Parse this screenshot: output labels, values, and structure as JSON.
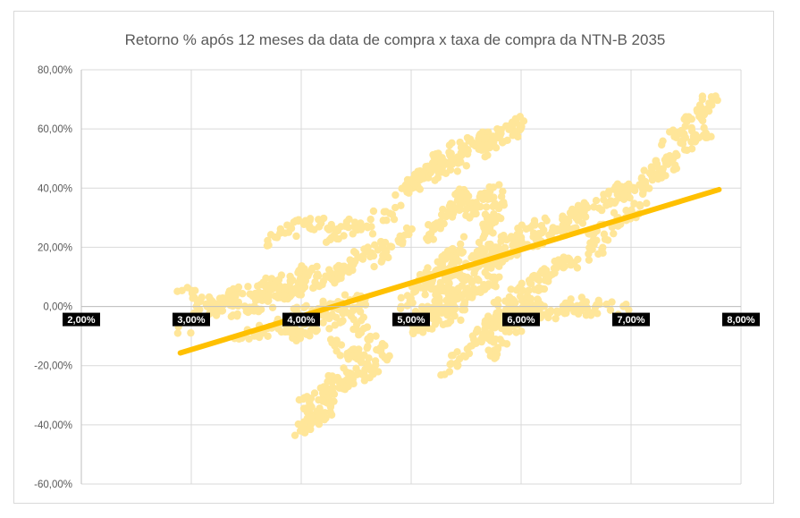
{
  "chart_data": {
    "type": "scatter",
    "title": "Retorno % após 12 meses da data de compra x taxa de compra da NTN-B 2035",
    "xlabel": "",
    "ylabel": "",
    "xlim": [
      0.02,
      0.08
    ],
    "ylim": [
      -0.6,
      0.8
    ],
    "x_ticks": [
      0.02,
      0.03,
      0.04,
      0.05,
      0.06,
      0.07,
      0.08
    ],
    "x_tick_labels": [
      "2,00%",
      "3,00%",
      "4,00%",
      "5,00%",
      "6,00%",
      "7,00%",
      "8,00%"
    ],
    "y_ticks": [
      0.8,
      0.6,
      0.4,
      0.2,
      0.0,
      -0.2,
      -0.4,
      -0.6
    ],
    "y_tick_labels": [
      "80,00%",
      "60,00%",
      "40,00%",
      "20,00%",
      "0,00%",
      "-20,00%",
      "-40,00%",
      "-60,00%"
    ],
    "grid": true,
    "point_color": "#ffe699",
    "trend_color": "#ffc000",
    "trendline": {
      "x": [
        0.029,
        0.078
      ],
      "y": [
        -0.157,
        0.395
      ]
    },
    "clusters": [
      {
        "x": [
          0.029,
          0.034
        ],
        "y": [
          -0.08,
          0.05
        ],
        "n": 40
      },
      {
        "x": [
          0.029,
          0.034
        ],
        "y": [
          0.05,
          -0.03
        ],
        "n": 30
      },
      {
        "x": [
          0.032,
          0.037
        ],
        "y": [
          0.0,
          0.08
        ],
        "n": 30
      },
      {
        "x": [
          0.034,
          0.04
        ],
        "y": [
          -0.02,
          0.06
        ],
        "n": 50
      },
      {
        "x": [
          0.034,
          0.04
        ],
        "y": [
          -0.1,
          -0.05
        ],
        "n": 40
      },
      {
        "x": [
          0.036,
          0.041
        ],
        "y": [
          0.04,
          0.12
        ],
        "n": 40
      },
      {
        "x": [
          0.039,
          0.045
        ],
        "y": [
          0.06,
          0.14
        ],
        "n": 40
      },
      {
        "x": [
          0.039,
          0.045
        ],
        "y": [
          -0.1,
          -0.02
        ],
        "n": 40
      },
      {
        "x": [
          0.039,
          0.046
        ],
        "y": [
          -0.03,
          0.03
        ],
        "n": 40
      },
      {
        "x": [
          0.043,
          0.047
        ],
        "y": [
          0.1,
          0.23
        ],
        "n": 30
      },
      {
        "x": [
          0.037,
          0.042
        ],
        "y": [
          0.22,
          0.3
        ],
        "n": 30
      },
      {
        "x": [
          0.042,
          0.049
        ],
        "y": [
          0.24,
          0.32
        ],
        "n": 40
      },
      {
        "x": [
          0.046,
          0.05
        ],
        "y": [
          0.15,
          0.25
        ],
        "n": 25
      },
      {
        "x": [
          0.04,
          0.043
        ],
        "y": [
          -0.42,
          -0.33
        ],
        "n": 40
      },
      {
        "x": [
          0.04,
          0.044
        ],
        "y": [
          -0.35,
          -0.22
        ],
        "n": 40
      },
      {
        "x": [
          0.042,
          0.047
        ],
        "y": [
          -0.3,
          -0.2
        ],
        "n": 35
      },
      {
        "x": [
          0.043,
          0.046
        ],
        "y": [
          -0.12,
          -0.2
        ],
        "n": 30
      },
      {
        "x": [
          0.045,
          0.048
        ],
        "y": [
          -0.05,
          -0.18
        ],
        "n": 30
      },
      {
        "x": [
          0.049,
          0.053
        ],
        "y": [
          0.38,
          0.5
        ],
        "n": 40
      },
      {
        "x": [
          0.05,
          0.055
        ],
        "y": [
          0.42,
          0.5
        ],
        "n": 35
      },
      {
        "x": [
          0.052,
          0.058
        ],
        "y": [
          0.5,
          0.58
        ],
        "n": 50
      },
      {
        "x": [
          0.056,
          0.06
        ],
        "y": [
          0.52,
          0.62
        ],
        "n": 45
      },
      {
        "x": [
          0.051,
          0.055
        ],
        "y": [
          0.22,
          0.4
        ],
        "n": 45
      },
      {
        "x": [
          0.054,
          0.058
        ],
        "y": [
          0.3,
          0.4
        ],
        "n": 40
      },
      {
        "x": [
          0.056,
          0.058
        ],
        "y": [
          0.22,
          0.34
        ],
        "n": 30
      },
      {
        "x": [
          0.049,
          0.055
        ],
        "y": [
          0.0,
          0.22
        ],
        "n": 70
      },
      {
        "x": [
          0.05,
          0.058
        ],
        "y": [
          -0.05,
          0.1
        ],
        "n": 90
      },
      {
        "x": [
          0.052,
          0.06
        ],
        "y": [
          0.05,
          0.2
        ],
        "n": 90
      },
      {
        "x": [
          0.054,
          0.062
        ],
        "y": [
          0.12,
          0.28
        ],
        "n": 70
      },
      {
        "x": [
          0.056,
          0.062
        ],
        "y": [
          -0.1,
          0.05
        ],
        "n": 60
      },
      {
        "x": [
          0.05,
          0.055
        ],
        "y": [
          -0.08,
          -0.01
        ],
        "n": 40
      },
      {
        "x": [
          0.053,
          0.058
        ],
        "y": [
          -0.22,
          -0.08
        ],
        "n": 30
      },
      {
        "x": [
          0.057,
          0.06
        ],
        "y": [
          -0.16,
          -0.05
        ],
        "n": 25
      },
      {
        "x": [
          0.057,
          0.067
        ],
        "y": [
          -0.05,
          0.02
        ],
        "n": 60
      },
      {
        "x": [
          0.062,
          0.07
        ],
        "y": [
          -0.02,
          0.0
        ],
        "n": 30
      },
      {
        "x": [
          0.06,
          0.066
        ],
        "y": [
          0.2,
          0.3
        ],
        "n": 45
      },
      {
        "x": [
          0.062,
          0.068
        ],
        "y": [
          0.1,
          0.22
        ],
        "n": 40
      },
      {
        "x": [
          0.058,
          0.063
        ],
        "y": [
          0.0,
          0.14
        ],
        "n": 40
      },
      {
        "x": [
          0.064,
          0.07
        ],
        "y": [
          0.3,
          0.4
        ],
        "n": 35
      },
      {
        "x": [
          0.066,
          0.071
        ],
        "y": [
          0.22,
          0.34
        ],
        "n": 30
      },
      {
        "x": [
          0.068,
          0.074
        ],
        "y": [
          0.36,
          0.48
        ],
        "n": 35
      },
      {
        "x": [
          0.072,
          0.077
        ],
        "y": [
          0.45,
          0.6
        ],
        "n": 40
      },
      {
        "x": [
          0.074,
          0.077
        ],
        "y": [
          0.58,
          0.69
        ],
        "n": 35
      },
      {
        "x": [
          0.076,
          0.078
        ],
        "y": [
          0.64,
          0.7
        ],
        "n": 10
      },
      {
        "x": [
          0.07,
          0.073
        ],
        "y": [
          0.3,
          0.54
        ],
        "n": 20
      }
    ]
  }
}
